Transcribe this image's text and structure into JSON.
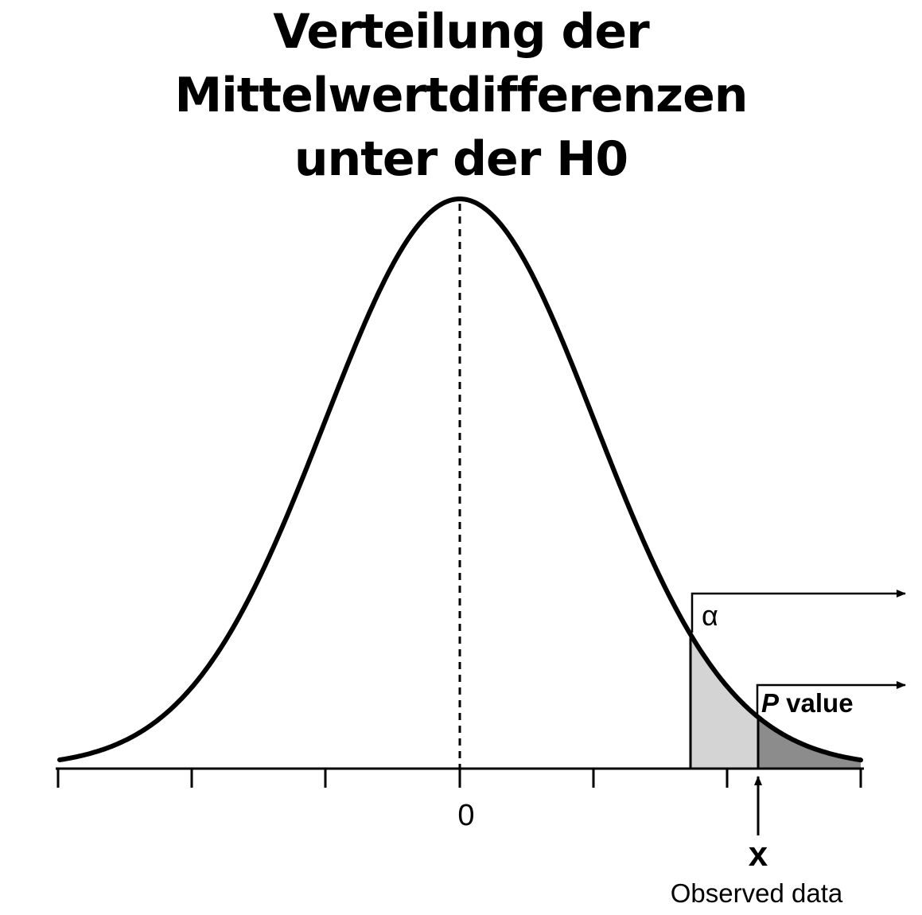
{
  "title": {
    "line1": "Verteilung der Mittelwertdifferenzen",
    "line2": "unter der H0"
  },
  "diagram": {
    "center_label": "0",
    "alpha_label": "α",
    "p_label_italic": "P",
    "p_label_rest": " value",
    "observed_letter": "x",
    "observed_label": "Observed data",
    "colors": {
      "curve": "#000000",
      "alpha_region": "#d4d4d4",
      "p_region": "#8c8c8c"
    }
  }
}
